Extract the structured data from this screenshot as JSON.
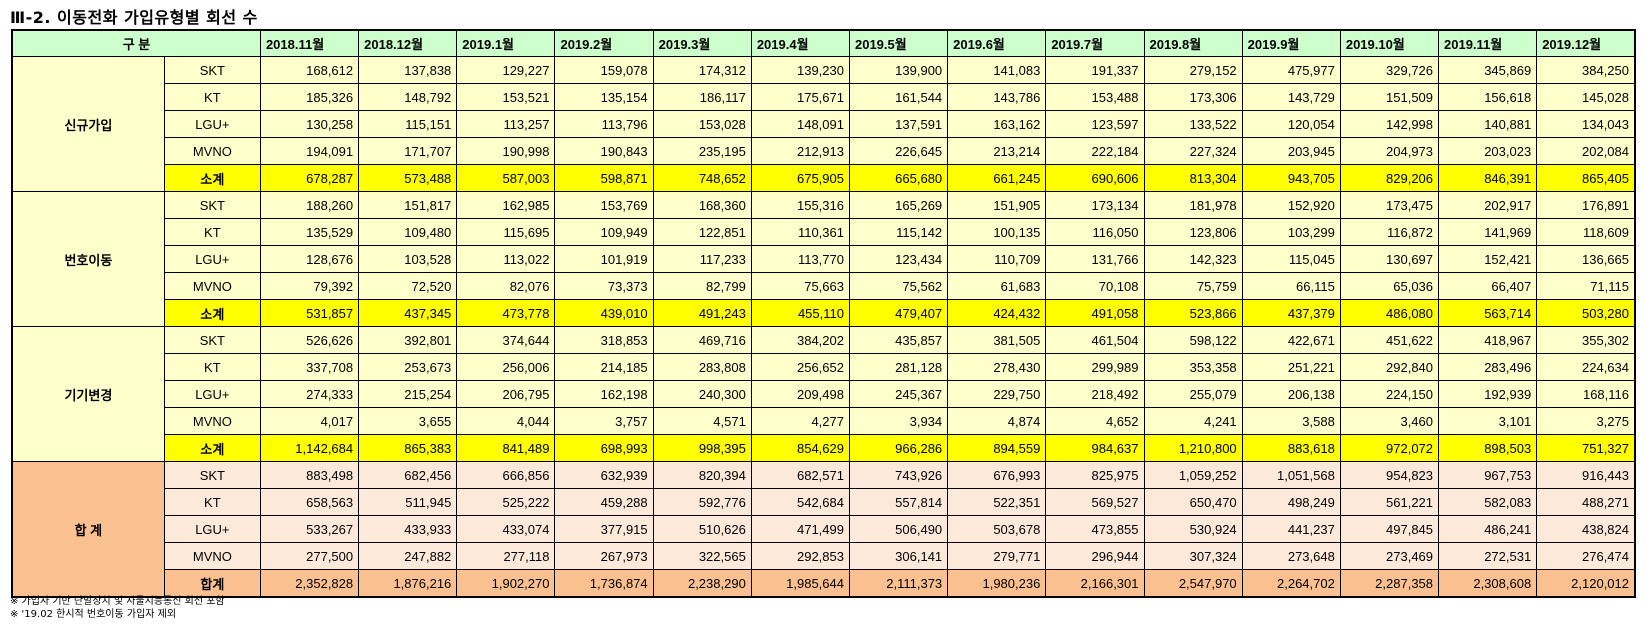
{
  "title": "Ⅲ-2. 이동전화 가입유형별 회선 수",
  "header": {
    "group_label": "구 분",
    "months": [
      "2018.11월",
      "2018.12월",
      "2019.1월",
      "2019.2월",
      "2019.3월",
      "2019.4월",
      "2019.5월",
      "2019.6월",
      "2019.7월",
      "2019.8월",
      "2019.9월",
      "2019.10월",
      "2019.11월",
      "2019.12월"
    ]
  },
  "groups": [
    {
      "name": "신규가입",
      "rows": [
        {
          "label": "SKT",
          "values": [
            "168,612",
            "137,838",
            "129,227",
            "159,078",
            "174,312",
            "139,230",
            "139,900",
            "141,083",
            "191,337",
            "279,152",
            "475,977",
            "329,726",
            "345,869",
            "384,250"
          ]
        },
        {
          "label": "KT",
          "values": [
            "185,326",
            "148,792",
            "153,521",
            "135,154",
            "186,117",
            "175,671",
            "161,544",
            "143,786",
            "153,488",
            "173,306",
            "143,729",
            "151,509",
            "156,618",
            "145,028"
          ]
        },
        {
          "label": "LGU+",
          "values": [
            "130,258",
            "115,151",
            "113,257",
            "113,796",
            "153,028",
            "148,091",
            "137,591",
            "163,162",
            "123,597",
            "133,522",
            "120,054",
            "142,998",
            "140,881",
            "134,043"
          ]
        },
        {
          "label": "MVNO",
          "values": [
            "194,091",
            "171,707",
            "190,998",
            "190,843",
            "235,195",
            "212,913",
            "226,645",
            "213,214",
            "222,184",
            "227,324",
            "203,945",
            "204,973",
            "203,023",
            "202,084"
          ]
        },
        {
          "label": "소계",
          "values": [
            "678,287",
            "573,488",
            "587,003",
            "598,871",
            "748,652",
            "675,905",
            "665,680",
            "661,245",
            "690,606",
            "813,304",
            "943,705",
            "829,206",
            "846,391",
            "865,405"
          ]
        }
      ]
    },
    {
      "name": "번호이동",
      "rows": [
        {
          "label": "SKT",
          "values": [
            "188,260",
            "151,817",
            "162,985",
            "153,769",
            "168,360",
            "155,316",
            "165,269",
            "151,905",
            "173,134",
            "181,978",
            "152,920",
            "173,475",
            "202,917",
            "176,891"
          ]
        },
        {
          "label": "KT",
          "values": [
            "135,529",
            "109,480",
            "115,695",
            "109,949",
            "122,851",
            "110,361",
            "115,142",
            "100,135",
            "116,050",
            "123,806",
            "103,299",
            "116,872",
            "141,969",
            "118,609"
          ]
        },
        {
          "label": "LGU+",
          "values": [
            "128,676",
            "103,528",
            "113,022",
            "101,919",
            "117,233",
            "113,770",
            "123,434",
            "110,709",
            "131,766",
            "142,323",
            "115,045",
            "130,697",
            "152,421",
            "136,665"
          ]
        },
        {
          "label": "MVNO",
          "values": [
            "79,392",
            "72,520",
            "82,076",
            "73,373",
            "82,799",
            "75,663",
            "75,562",
            "61,683",
            "70,108",
            "75,759",
            "66,115",
            "65,036",
            "66,407",
            "71,115"
          ]
        },
        {
          "label": "소계",
          "values": [
            "531,857",
            "437,345",
            "473,778",
            "439,010",
            "491,243",
            "455,110",
            "479,407",
            "424,432",
            "491,058",
            "523,866",
            "437,379",
            "486,080",
            "563,714",
            "503,280"
          ]
        }
      ]
    },
    {
      "name": "기기변경",
      "rows": [
        {
          "label": "SKT",
          "values": [
            "526,626",
            "392,801",
            "374,644",
            "318,853",
            "469,716",
            "384,202",
            "435,857",
            "381,505",
            "461,504",
            "598,122",
            "422,671",
            "451,622",
            "418,967",
            "355,302"
          ]
        },
        {
          "label": "KT",
          "values": [
            "337,708",
            "253,673",
            "256,006",
            "214,185",
            "283,808",
            "256,652",
            "281,128",
            "278,430",
            "299,989",
            "353,358",
            "251,221",
            "292,840",
            "283,496",
            "224,634"
          ]
        },
        {
          "label": "LGU+",
          "values": [
            "274,333",
            "215,254",
            "206,795",
            "162,198",
            "240,300",
            "209,498",
            "245,367",
            "229,750",
            "218,492",
            "255,079",
            "206,138",
            "224,150",
            "192,939",
            "168,116"
          ]
        },
        {
          "label": "MVNO",
          "values": [
            "4,017",
            "3,655",
            "4,044",
            "3,757",
            "4,571",
            "4,277",
            "3,934",
            "4,874",
            "4,652",
            "4,241",
            "3,588",
            "3,460",
            "3,101",
            "3,275"
          ]
        },
        {
          "label": "소계",
          "values": [
            "1,142,684",
            "865,383",
            "841,489",
            "698,993",
            "998,395",
            "854,629",
            "966,286",
            "894,559",
            "984,637",
            "1,210,800",
            "883,618",
            "972,072",
            "898,503",
            "751,327"
          ]
        }
      ]
    },
    {
      "name": "합 계",
      "rows": [
        {
          "label": "SKT",
          "values": [
            "883,498",
            "682,456",
            "666,856",
            "632,939",
            "820,394",
            "682,571",
            "743,926",
            "676,993",
            "825,975",
            "1,059,252",
            "1,051,568",
            "954,823",
            "967,753",
            "916,443"
          ]
        },
        {
          "label": "KT",
          "values": [
            "658,563",
            "511,945",
            "525,222",
            "459,288",
            "592,776",
            "542,684",
            "557,814",
            "522,351",
            "569,527",
            "650,470",
            "498,249",
            "561,221",
            "582,083",
            "488,271"
          ]
        },
        {
          "label": "LGU+",
          "values": [
            "533,267",
            "433,933",
            "433,074",
            "377,915",
            "510,626",
            "471,499",
            "506,490",
            "503,678",
            "473,855",
            "530,924",
            "441,237",
            "497,845",
            "486,241",
            "438,824"
          ]
        },
        {
          "label": "MVNO",
          "values": [
            "277,500",
            "247,882",
            "277,118",
            "267,973",
            "322,565",
            "292,853",
            "306,141",
            "279,771",
            "296,944",
            "307,324",
            "273,648",
            "273,469",
            "272,531",
            "276,474"
          ]
        },
        {
          "label": "합계",
          "values": [
            "2,352,828",
            "1,876,216",
            "1,902,270",
            "1,736,874",
            "2,238,290",
            "1,985,644",
            "2,111,373",
            "1,980,236",
            "2,166,301",
            "2,547,970",
            "2,264,702",
            "2,287,358",
            "2,308,608",
            "2,120,012"
          ]
        }
      ]
    }
  ],
  "notes": [
    "※ 가입자 기반 단말장치 및 사물지능통신 회선 포함",
    "※ '19.02 한시적 번호이동 가입자 제외"
  ]
}
